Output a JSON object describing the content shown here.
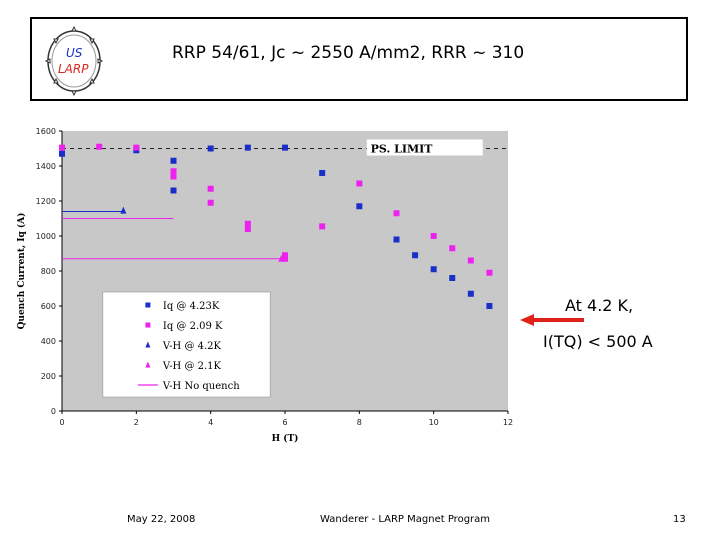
{
  "slide": {
    "title": "RRP 54/61, Jc ~ 2550 A/mm2, RRR ~ 310",
    "logo": {
      "line1": "US",
      "line2": "LARP"
    },
    "annotation": {
      "line1": "At 4.2 K,",
      "line2": "I(TQ) < 500 A"
    },
    "footer": {
      "date": "May 22, 2008",
      "center": "Wanderer - LARP Magnet Program",
      "page": "13"
    }
  },
  "chart_data": {
    "type": "scatter",
    "xlabel": "H (T)",
    "ylabel": "Quench Current, Iq (A)",
    "xlim": [
      0,
      12
    ],
    "ylim": [
      0,
      1600
    ],
    "xticks": [
      0,
      2,
      4,
      6,
      8,
      10,
      12
    ],
    "yticks": [
      0,
      200,
      400,
      600,
      800,
      1000,
      1200,
      1400,
      1600
    ],
    "grid": false,
    "legend_position": "lower-left",
    "reference_line": {
      "label": "PS. LIMIT",
      "y": 1500
    },
    "series": [
      {
        "name": "Iq @ 4.23K",
        "marker": "square",
        "color": "#1a2ec8",
        "points": [
          [
            0,
            1470
          ],
          [
            2,
            1490
          ],
          [
            3,
            1430
          ],
          [
            3,
            1260
          ],
          [
            4,
            1500
          ],
          [
            5,
            1505
          ],
          [
            6,
            1505
          ],
          [
            7,
            1360
          ],
          [
            8,
            1170
          ],
          [
            9,
            980
          ],
          [
            9.5,
            890
          ],
          [
            10,
            810
          ],
          [
            10.5,
            760
          ],
          [
            11,
            670
          ],
          [
            11.5,
            600
          ]
        ]
      },
      {
        "name": "Iq @ 2.09 K",
        "marker": "square",
        "color": "#ee22ee",
        "points": [
          [
            0,
            1505
          ],
          [
            1,
            1510
          ],
          [
            2,
            1505
          ],
          [
            3,
            1370
          ],
          [
            3,
            1340
          ],
          [
            4,
            1270
          ],
          [
            4,
            1190
          ],
          [
            5,
            1070
          ],
          [
            5,
            1040
          ],
          [
            6,
            890
          ],
          [
            6,
            870
          ],
          [
            7,
            1055
          ],
          [
            8,
            1300
          ],
          [
            9,
            1130
          ],
          [
            10,
            1000
          ],
          [
            10.5,
            930
          ],
          [
            11,
            860
          ],
          [
            11.5,
            790
          ]
        ]
      },
      {
        "name": "V-H @ 4.2K",
        "marker": "triangle",
        "color": "#1a2ec8",
        "points": [
          [
            1.65,
            1145
          ]
        ],
        "line": [
          [
            0,
            1140
          ],
          [
            1.65,
            1140
          ]
        ]
      },
      {
        "name": "V-H @ 2.1K",
        "marker": "triangle",
        "color": "#ee22ee",
        "points": [
          [
            5.9,
            870
          ]
        ],
        "line": [
          [
            0,
            870
          ],
          [
            5.9,
            870
          ]
        ]
      },
      {
        "name": "V-H No quench",
        "marker": "line",
        "color": "#ee22ee",
        "line": [
          [
            0,
            1100
          ],
          [
            3,
            1100
          ]
        ]
      }
    ]
  }
}
